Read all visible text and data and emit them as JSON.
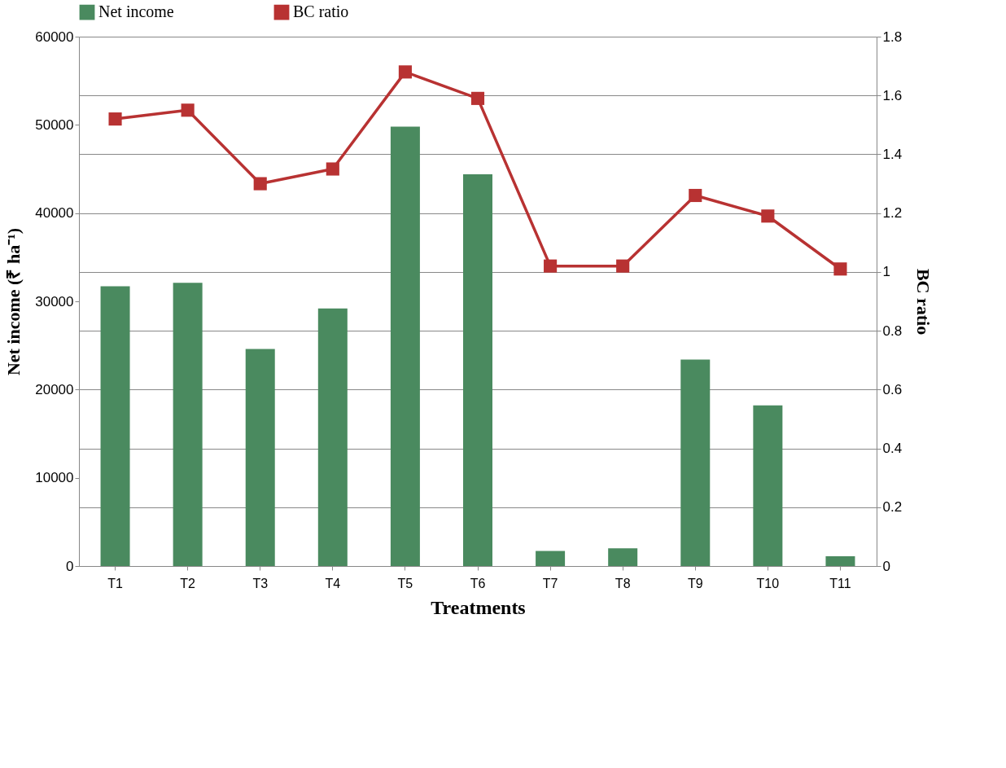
{
  "chart_data": {
    "type": "bar",
    "xlabel": "Treatments",
    "ylabel": "Net income (₹ ha⁻¹)",
    "y2label": "BC ratio",
    "categories": [
      "T1",
      "T2",
      "T3",
      "T4",
      "T5",
      "T6",
      "T7",
      "T8",
      "T9",
      "T10",
      "T11"
    ],
    "series": [
      {
        "name": "Net income",
        "color": "#4a8a5f",
        "values": [
          31700,
          32100,
          24600,
          29200,
          49800,
          44400,
          1700,
          2000,
          23400,
          18200,
          1100
        ]
      },
      {
        "name": "BC ratio",
        "type": "line",
        "axis": "y2",
        "color": "#b83232",
        "marker": "square",
        "line_style": "solid",
        "values": [
          1.52,
          1.55,
          1.3,
          1.35,
          1.68,
          1.59,
          1.02,
          1.02,
          1.26,
          1.19,
          1.01
        ]
      }
    ],
    "ylim": [
      0,
      60000
    ],
    "yticks": [
      0,
      10000,
      20000,
      30000,
      40000,
      50000,
      60000
    ],
    "y2lim": [
      0,
      1.8
    ],
    "y2ticks": [
      0,
      0.2,
      0.4,
      0.6,
      0.8,
      1,
      1.2,
      1.4,
      1.6,
      1.8
    ],
    "grid": true,
    "legend": "top"
  }
}
